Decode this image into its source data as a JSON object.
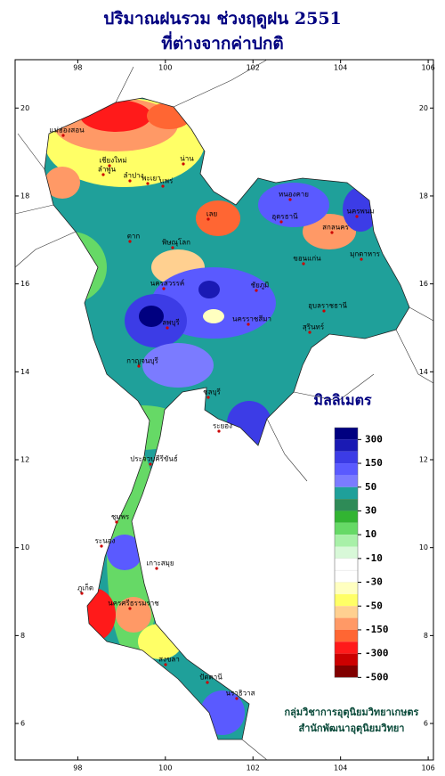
{
  "map": {
    "title": "ปริมาณฝนรวม ช่วงฤดูฝน 2551",
    "subtitle": "ที่ต่างจากค่าปกติ",
    "xlim": [
      96.57,
      106.12
    ],
    "ylim": [
      5.17,
      21.1
    ],
    "xticks": [
      98,
      100,
      102,
      104,
      106
    ],
    "yticks": [
      6,
      8,
      10,
      12,
      14,
      16,
      18,
      20
    ],
    "legend": {
      "title": "มิลลิเมตร",
      "colors": [
        "#000080",
        "#1a1ab4",
        "#3c3ce6",
        "#5a5aff",
        "#7b7bff",
        "#1fa09a",
        "#2e8b57",
        "#32b432",
        "#66d966",
        "#a8f0a8",
        "#d8f8d8",
        "#ffffff",
        "#ffffff",
        "#ffffc0",
        "#ffff66",
        "#ffd090",
        "#ff9966",
        "#ff6633",
        "#ff1a1a",
        "#cc0000",
        "#800000"
      ],
      "ticks": [
        300,
        150,
        50,
        30,
        10,
        -10,
        -30,
        -50,
        -150,
        -300,
        -500
      ]
    },
    "labels": [
      "แม่ฮ่องสอน",
      "เชียงใหม่",
      "ลำพูน",
      "พะเยา",
      "น่าน",
      "ลำปาง",
      "แพร่",
      "ตาก",
      "พิษณุโลก",
      "เลย",
      "หนองคาย",
      "อุดรธานี",
      "นครพนม",
      "สกลนคร",
      "ขอนแก่น",
      "มุกดาหาร",
      "นครสวรรค์",
      "ชัยภูมิ",
      "อุบลราชธานี",
      "นครราชสีมา",
      "สุรินทร์",
      "ลพบุรี",
      "กาญจนบุรี",
      "ชลบุรี",
      "ระยอง",
      "ประจวบคีรีขันธ์",
      "ชุมพร",
      "ระนอง",
      "เกาะสมุย",
      "ภูเก็ต",
      "นครศรีธรรมราช",
      "สงขลา",
      "ปัตตานี",
      "นราธิวาส"
    ],
    "credits": [
      "กลุ่มวิชาการอุตุนิยมวิทยาเกษตร",
      "สำนักพัฒนาอุตุนิยมวิทยา"
    ]
  }
}
